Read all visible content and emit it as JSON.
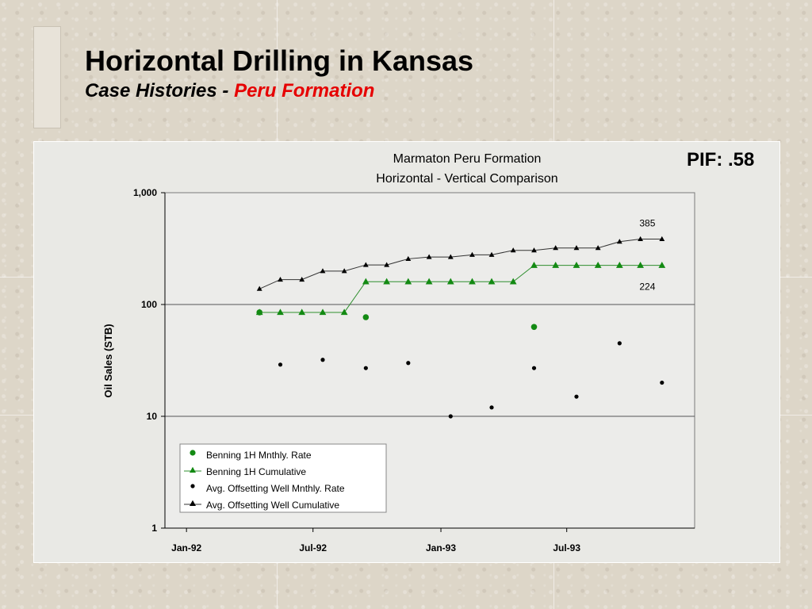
{
  "slide": {
    "title": "Horizontal Drilling in Kansas",
    "subtitle_lead": "Case Histories - ",
    "subtitle_accent": "Peru Formation",
    "pif_label": "PIF: .58"
  },
  "colors": {
    "accent": "#e60000",
    "series_green": "#138a13",
    "series_black": "#000000"
  },
  "chart_data": {
    "type": "line",
    "title": "Marmaton Peru Formation",
    "subtitle": "Horizontal - Vertical Comparison",
    "ylabel": "Oil Sales (STB)",
    "xlabel": "",
    "y_scale": "log",
    "ylim": [
      1,
      1000
    ],
    "y_ticks": [
      {
        "value": 1,
        "label": "1"
      },
      {
        "value": 10,
        "label": "10"
      },
      {
        "value": 100,
        "label": "100"
      },
      {
        "value": 1000,
        "label": "1,000"
      }
    ],
    "x_ticks": [
      {
        "value": "1992-01",
        "label": "Jan-92"
      },
      {
        "value": "1992-07",
        "label": "Jul-92"
      },
      {
        "value": "1993-01",
        "label": "Jan-93"
      },
      {
        "value": "1993-07",
        "label": "Jul-93"
      }
    ],
    "xlim": [
      "1991-12-01",
      "1994-01-01"
    ],
    "grid": "horizontal major",
    "legend_position": "bottom-left inside plot",
    "series": [
      {
        "name": "Benning 1H Mnthly. Rate",
        "marker": "circle",
        "line": false,
        "color": "#138a13",
        "points": [
          {
            "x": "1992-04-15",
            "y": 85
          },
          {
            "x": "1992-09-15",
            "y": 77
          },
          {
            "x": "1993-05-15",
            "y": 63
          }
        ]
      },
      {
        "name": "Benning 1H Cumulative",
        "marker": "triangle",
        "line": true,
        "color": "#138a13",
        "points": [
          {
            "x": "1992-04-15",
            "y": 85
          },
          {
            "x": "1992-05-15",
            "y": 85
          },
          {
            "x": "1992-06-15",
            "y": 85
          },
          {
            "x": "1992-07-15",
            "y": 85
          },
          {
            "x": "1992-08-15",
            "y": 85
          },
          {
            "x": "1992-09-15",
            "y": 160
          },
          {
            "x": "1992-10-15",
            "y": 160
          },
          {
            "x": "1992-11-15",
            "y": 160
          },
          {
            "x": "1992-12-15",
            "y": 160
          },
          {
            "x": "1993-01-15",
            "y": 160
          },
          {
            "x": "1993-02-15",
            "y": 160
          },
          {
            "x": "1993-03-15",
            "y": 160
          },
          {
            "x": "1993-04-15",
            "y": 160
          },
          {
            "x": "1993-05-15",
            "y": 224
          },
          {
            "x": "1993-06-15",
            "y": 224
          },
          {
            "x": "1993-07-15",
            "y": 224
          },
          {
            "x": "1993-08-15",
            "y": 224
          },
          {
            "x": "1993-09-15",
            "y": 224
          },
          {
            "x": "1993-10-15",
            "y": 224
          },
          {
            "x": "1993-11-15",
            "y": 224
          }
        ]
      },
      {
        "name": "Avg. Offsetting Well Mnthly. Rate",
        "marker": "circle",
        "line": false,
        "color": "#000000",
        "points": [
          {
            "x": "1992-05-15",
            "y": 29
          },
          {
            "x": "1992-07-15",
            "y": 32
          },
          {
            "x": "1992-09-15",
            "y": 27
          },
          {
            "x": "1992-11-15",
            "y": 30
          },
          {
            "x": "1993-01-15",
            "y": 10
          },
          {
            "x": "1993-03-15",
            "y": 12
          },
          {
            "x": "1993-05-15",
            "y": 27
          },
          {
            "x": "1993-07-15",
            "y": 15
          },
          {
            "x": "1993-09-15",
            "y": 45
          },
          {
            "x": "1993-11-15",
            "y": 20
          }
        ]
      },
      {
        "name": "Avg. Offsetting Well Cumulative",
        "marker": "triangle",
        "line": true,
        "color": "#000000",
        "points": [
          {
            "x": "1992-04-15",
            "y": 138
          },
          {
            "x": "1992-05-15",
            "y": 167
          },
          {
            "x": "1992-06-15",
            "y": 167
          },
          {
            "x": "1992-07-15",
            "y": 199
          },
          {
            "x": "1992-08-15",
            "y": 199
          },
          {
            "x": "1992-09-15",
            "y": 226
          },
          {
            "x": "1992-10-15",
            "y": 226
          },
          {
            "x": "1992-11-15",
            "y": 256
          },
          {
            "x": "1992-12-15",
            "y": 266
          },
          {
            "x": "1993-01-15",
            "y": 266
          },
          {
            "x": "1993-02-15",
            "y": 278
          },
          {
            "x": "1993-03-15",
            "y": 278
          },
          {
            "x": "1993-04-15",
            "y": 305
          },
          {
            "x": "1993-05-15",
            "y": 305
          },
          {
            "x": "1993-06-15",
            "y": 320
          },
          {
            "x": "1993-07-15",
            "y": 320
          },
          {
            "x": "1993-08-15",
            "y": 320
          },
          {
            "x": "1993-09-15",
            "y": 365
          },
          {
            "x": "1993-10-15",
            "y": 385
          },
          {
            "x": "1993-11-15",
            "y": 385
          }
        ]
      }
    ],
    "annotations": [
      {
        "text": "385",
        "x": "1993-10-25",
        "y": 385,
        "position": "above"
      },
      {
        "text": "224",
        "x": "1993-10-25",
        "y": 224,
        "position": "below"
      }
    ]
  }
}
